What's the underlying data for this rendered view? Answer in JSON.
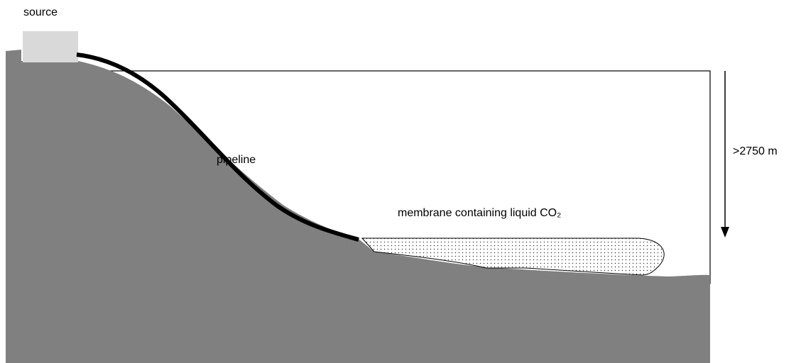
{
  "labels": {
    "source": "source",
    "pipeline": "pipeline",
    "membrane": "membrane containing liquid CO₂",
    "depth": ">2750 m"
  }
}
